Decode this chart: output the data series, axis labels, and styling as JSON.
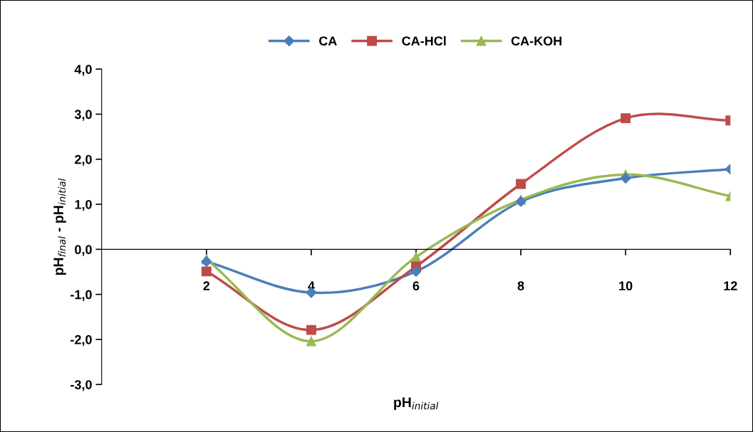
{
  "chart_data": {
    "type": "line",
    "xlabel": "pH$_{initial}$",
    "ylabel": "pH$_{final}$ - pH$_{initial}$",
    "x": [
      2,
      4,
      6,
      8,
      10,
      12
    ],
    "series": [
      {
        "name": "CA",
        "color": "#4a7ebb",
        "marker": "diamond",
        "values": [
          -0.27,
          -0.96,
          -0.49,
          1.06,
          1.58,
          1.78
        ]
      },
      {
        "name": "CA-HCl",
        "color": "#be4b48",
        "marker": "square",
        "values": [
          -0.49,
          -1.79,
          -0.38,
          1.45,
          2.91,
          2.86
        ]
      },
      {
        "name": "CA-KOH",
        "color": "#98b954",
        "marker": "triangle",
        "values": [
          -0.22,
          -2.04,
          -0.17,
          1.1,
          1.66,
          1.18
        ]
      }
    ],
    "xlim": [
      0,
      12
    ],
    "xticks": [
      2,
      4,
      6,
      8,
      10,
      12
    ],
    "ylim": [
      -3,
      4
    ],
    "yticks": [
      {
        "value": -3,
        "label": "-3,0"
      },
      {
        "value": -2,
        "label": "-2,0"
      },
      {
        "value": -1,
        "label": "-1,0"
      },
      {
        "value": 0,
        "label": "0,0"
      },
      {
        "value": 1,
        "label": "1,0"
      },
      {
        "value": 2,
        "label": "2,0"
      },
      {
        "value": 3,
        "label": "3,0"
      },
      {
        "value": 4,
        "label": "4,0"
      }
    ],
    "grid": false,
    "legend": "top",
    "line_style": "solid"
  }
}
